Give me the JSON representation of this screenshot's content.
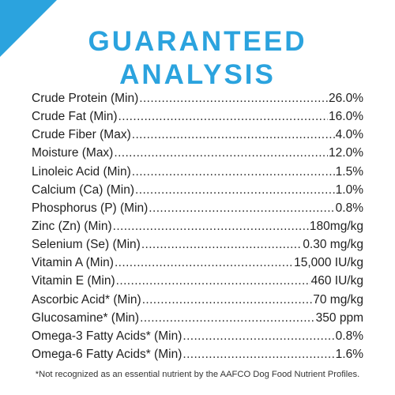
{
  "accent_color": "#2ba3de",
  "title": {
    "line1": "GUARANTEED",
    "line2": "ANALYSIS"
  },
  "rows": [
    {
      "label": "Crude Protein (Min)",
      "value": "26.0%"
    },
    {
      "label": "Crude Fat (Min)",
      "value": "16.0%"
    },
    {
      "label": "Crude Fiber (Max)",
      "value": "4.0%"
    },
    {
      "label": "Moisture (Max)",
      "value": "12.0%"
    },
    {
      "label": "Linoleic Acid (Min)",
      "value": "1.5%"
    },
    {
      "label": "Calcium (Ca) (Min)",
      "value": "1.0%"
    },
    {
      "label": "Phosphorus (P) (Min)",
      "value": "0.8%"
    },
    {
      "label": "Zinc (Zn) (Min)",
      "value": "180mg/kg"
    },
    {
      "label": "Selenium (Se) (Min)",
      "value": "0.30 mg/kg"
    },
    {
      "label": "Vitamin A (Min)",
      "value": "15,000 IU/kg"
    },
    {
      "label": "Vitamin E (Min)",
      "value": "460 IU/kg"
    },
    {
      "label": "Ascorbic Acid* (Min)",
      "value": "70 mg/kg"
    },
    {
      "label": "Glucosamine* (Min)",
      "value": "350 ppm"
    },
    {
      "label": "Omega-3 Fatty Acids* (Min)",
      "value": "0.8%"
    },
    {
      "label": "Omega-6 Fatty Acids* (Min)",
      "value": "1.6%"
    }
  ],
  "footnote": "*Not recognized as an essential nutrient by the AAFCO Dog Food Nutrient Profiles."
}
